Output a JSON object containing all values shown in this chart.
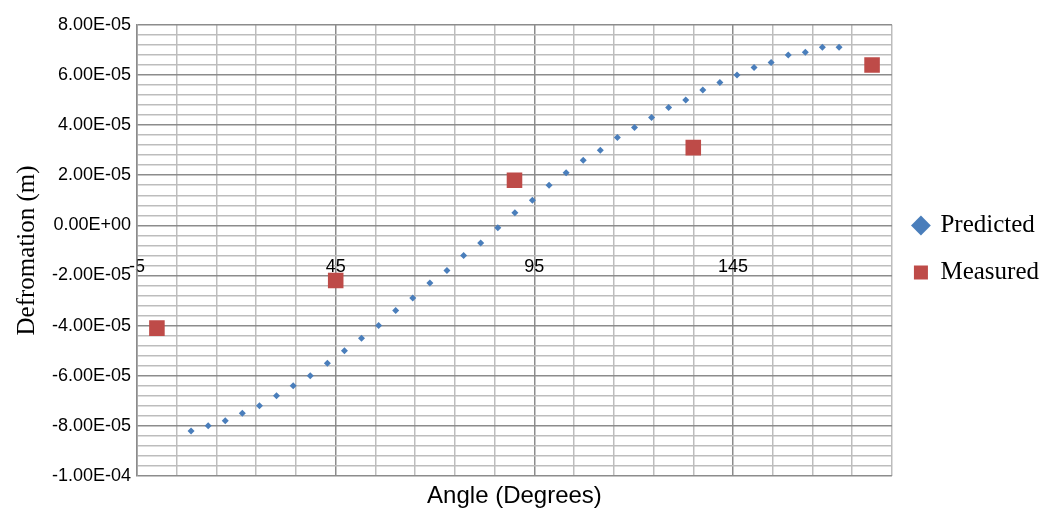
{
  "chart_data": {
    "type": "scatter",
    "xlabel": "Angle (Degrees)",
    "ylabel": "Defromation (m)",
    "xlim": [
      -5,
      185
    ],
    "xticks": [
      {
        "value": -5,
        "label": "-5"
      },
      {
        "value": 5,
        "label": null
      },
      {
        "value": 15,
        "label": null
      },
      {
        "value": 25,
        "label": null
      },
      {
        "value": 35,
        "label": null
      },
      45,
      {
        "value": 55,
        "label": null
      },
      {
        "value": 65,
        "label": null
      },
      {
        "value": 75,
        "label": null
      },
      {
        "value": 85,
        "label": null
      },
      95,
      {
        "value": 105,
        "label": null
      },
      {
        "value": 115,
        "label": null
      },
      {
        "value": 125,
        "label": null
      },
      {
        "value": 135,
        "label": null
      },
      145,
      {
        "value": 155,
        "label": null
      },
      {
        "value": 165,
        "label": null
      },
      {
        "value": 175,
        "label": null
      },
      {
        "value": 185,
        "label": null
      }
    ],
    "ylim": [
      -0.0001,
      8e-05
    ],
    "yticks": [
      {
        "value": -0.0001,
        "label": "-1.00E-04"
      },
      {
        "value": -9.6e-05,
        "label": null
      },
      {
        "value": -9.2e-05,
        "label": null
      },
      {
        "value": -8.8e-05,
        "label": null
      },
      {
        "value": -8.4e-05,
        "label": null
      },
      {
        "value": -8e-05,
        "label": "-8.00E-05"
      },
      {
        "value": -7.6e-05,
        "label": null
      },
      {
        "value": -7.2e-05,
        "label": null
      },
      {
        "value": -6.8e-05,
        "label": null
      },
      {
        "value": -6.4e-05,
        "label": null
      },
      {
        "value": -6e-05,
        "label": "-6.00E-05"
      },
      {
        "value": -5.6e-05,
        "label": null
      },
      {
        "value": -5.2e-05,
        "label": null
      },
      {
        "value": -4.8e-05,
        "label": null
      },
      {
        "value": -4.4e-05,
        "label": null
      },
      {
        "value": -4e-05,
        "label": "-4.00E-05"
      },
      {
        "value": -3.6e-05,
        "label": null
      },
      {
        "value": -3.2e-05,
        "label": null
      },
      {
        "value": -2.8e-05,
        "label": null
      },
      {
        "value": -2.4e-05,
        "label": null
      },
      {
        "value": -2e-05,
        "label": "-2.00E-05"
      },
      {
        "value": -1.6e-05,
        "label": null
      },
      {
        "value": -1.2e-05,
        "label": null
      },
      {
        "value": -8e-06,
        "label": null
      },
      {
        "value": -4e-06,
        "label": null
      },
      {
        "value": 0,
        "label": "0.00E+00"
      },
      {
        "value": 4e-06,
        "label": null
      },
      {
        "value": 8e-06,
        "label": null
      },
      {
        "value": 1.2e-05,
        "label": null
      },
      {
        "value": 1.6e-05,
        "label": null
      },
      {
        "value": 2e-05,
        "label": "2.00E-05"
      },
      {
        "value": 2.4e-05,
        "label": null
      },
      {
        "value": 2.8e-05,
        "label": null
      },
      {
        "value": 3.2e-05,
        "label": null
      },
      {
        "value": 3.6e-05,
        "label": null
      },
      {
        "value": 4e-05,
        "label": "4.00E-05"
      },
      {
        "value": 4.4e-05,
        "label": null
      },
      {
        "value": 4.8e-05,
        "label": null
      },
      {
        "value": 5.2e-05,
        "label": null
      },
      {
        "value": 5.6e-05,
        "label": null
      },
      {
        "value": 6e-05,
        "label": "6.00E-05"
      },
      {
        "value": 6.4e-05,
        "label": null
      },
      {
        "value": 6.8e-05,
        "label": null
      },
      {
        "value": 7.2e-05,
        "label": null
      },
      {
        "value": 7.6e-05,
        "label": null
      },
      {
        "value": 8e-05,
        "label": "8.00E-05"
      }
    ],
    "grid": true,
    "legend": "right",
    "series": [
      {
        "name": "Predicted",
        "color": "#4a7ebb",
        "marker": "diamond",
        "x": [
          8.6,
          12.9,
          17.2,
          21.5,
          25.8,
          30.1,
          34.3,
          38.6,
          42.9,
          47.2,
          51.5,
          55.8,
          60.1,
          64.4,
          68.7,
          73.0,
          77.2,
          81.5,
          85.8,
          90.1,
          94.5,
          98.7,
          103.0,
          107.3,
          111.6,
          115.9,
          120.2,
          124.5,
          128.8,
          133.1,
          137.4,
          141.7,
          146.0,
          150.3,
          154.6,
          158.9,
          163.2,
          167.5,
          171.7
        ],
        "values": [
          -8.2e-05,
          -8e-05,
          -7.8e-05,
          -7.5e-05,
          -7.2e-05,
          -6.8e-05,
          -6.4e-05,
          -6e-05,
          -5.5e-05,
          -5e-05,
          -4.5e-05,
          -4e-05,
          -3.4e-05,
          -2.9e-05,
          -2.3e-05,
          -1.8e-05,
          -1.2e-05,
          -7e-06,
          -1e-06,
          5e-06,
          1e-05,
          1.6e-05,
          2.1e-05,
          2.6e-05,
          3e-05,
          3.5e-05,
          3.9e-05,
          4.3e-05,
          4.7e-05,
          5e-05,
          5.4e-05,
          5.7e-05,
          6e-05,
          6.3e-05,
          6.5e-05,
          6.8e-05,
          6.9e-05,
          7.1e-05,
          7.1e-05
        ]
      },
      {
        "name": "Measured",
        "color": "#be4b48",
        "marker": "square",
        "x": [
          0,
          45,
          90,
          135,
          180
        ],
        "values": [
          -4.1e-05,
          -2.2e-05,
          1.8e-05,
          3.1e-05,
          6.4e-05
        ]
      }
    ]
  }
}
